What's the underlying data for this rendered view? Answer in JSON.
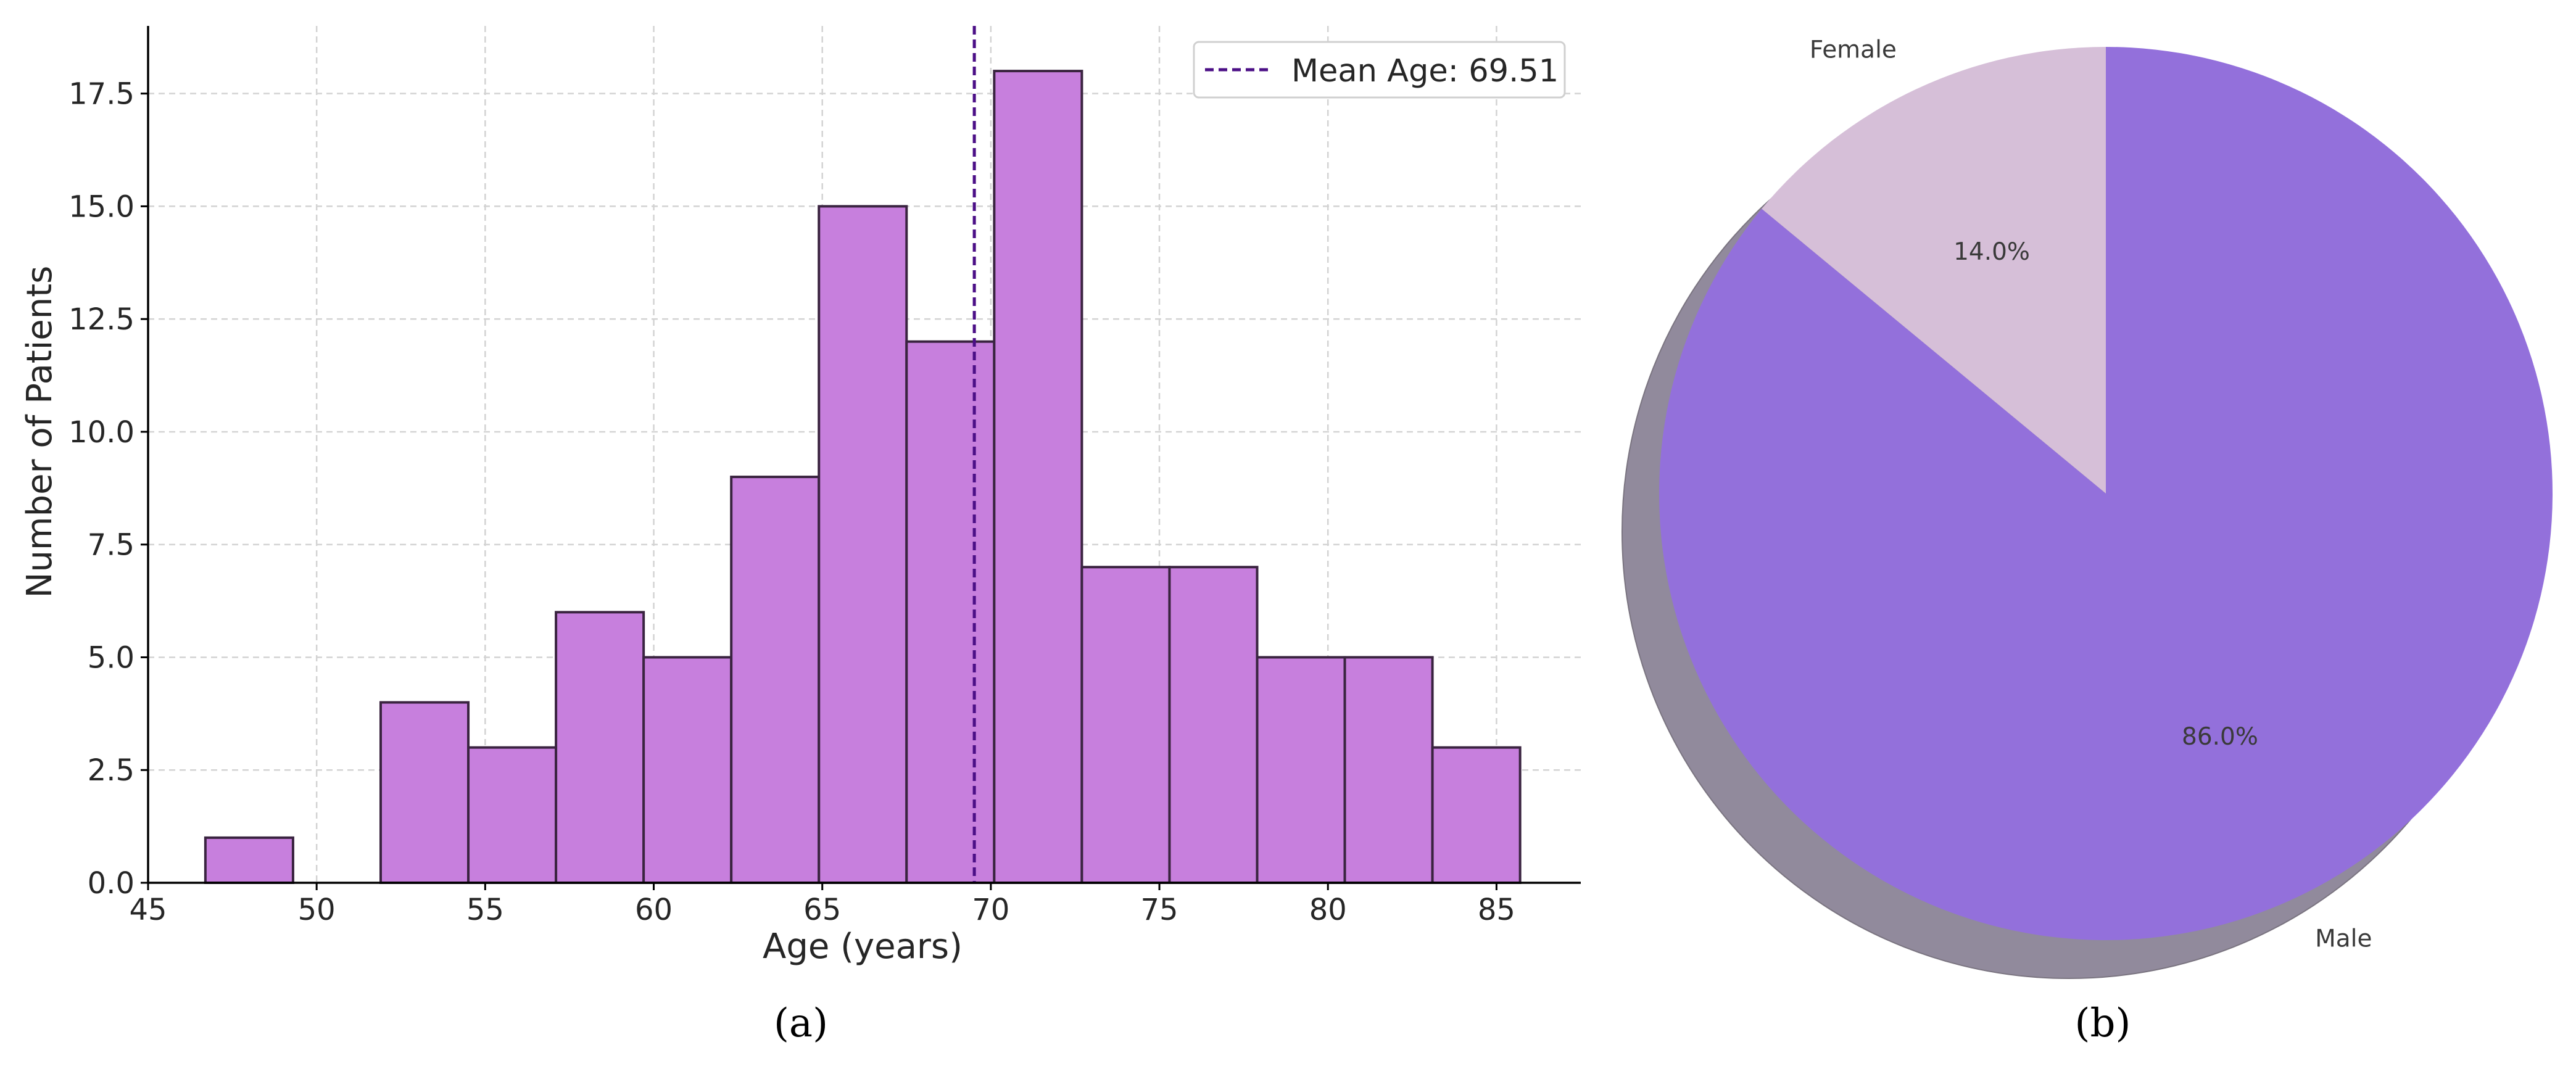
{
  "panels": [
    {
      "caption": "(a)",
      "chart_data": {
        "type": "bar",
        "subtype": "histogram",
        "title": "",
        "xlabel": "Age (years)",
        "ylabel": "Number of Patients",
        "xlim": [
          45,
          87.5
        ],
        "ylim": [
          0,
          19
        ],
        "x_ticks": [
          45,
          50,
          55,
          60,
          65,
          70,
          75,
          80,
          85
        ],
        "y_ticks": [
          0.0,
          2.5,
          5.0,
          7.5,
          10.0,
          12.5,
          15.0,
          17.5
        ],
        "grid": true,
        "bin_edges": [
          46.7,
          49.3,
          51.9,
          54.5,
          57.1,
          59.7,
          62.3,
          64.9,
          67.5,
          70.1,
          72.7,
          75.3,
          77.9,
          80.5,
          83.1,
          85.7
        ],
        "values": [
          1,
          0,
          4,
          3,
          6,
          5,
          9,
          15,
          12,
          18,
          7,
          7,
          5,
          5,
          3
        ],
        "mean_line": {
          "value": 69.51,
          "label": "Mean Age: 69.51"
        },
        "legend_position": "top-right",
        "colors": {
          "bar": "#c77fdd",
          "edge": "#3a2440",
          "mean": "#4b0f86"
        }
      }
    },
    {
      "caption": "(b)",
      "chart_data": {
        "type": "pie",
        "labels": [
          "Female",
          "Male"
        ],
        "values": [
          14.0,
          86.0
        ],
        "value_labels": [
          "14.0%",
          "86.0%"
        ],
        "shadow": true,
        "colors": [
          "#d6bfd8",
          "#9370db"
        ],
        "shadow_color": "#918a9c"
      }
    }
  ]
}
